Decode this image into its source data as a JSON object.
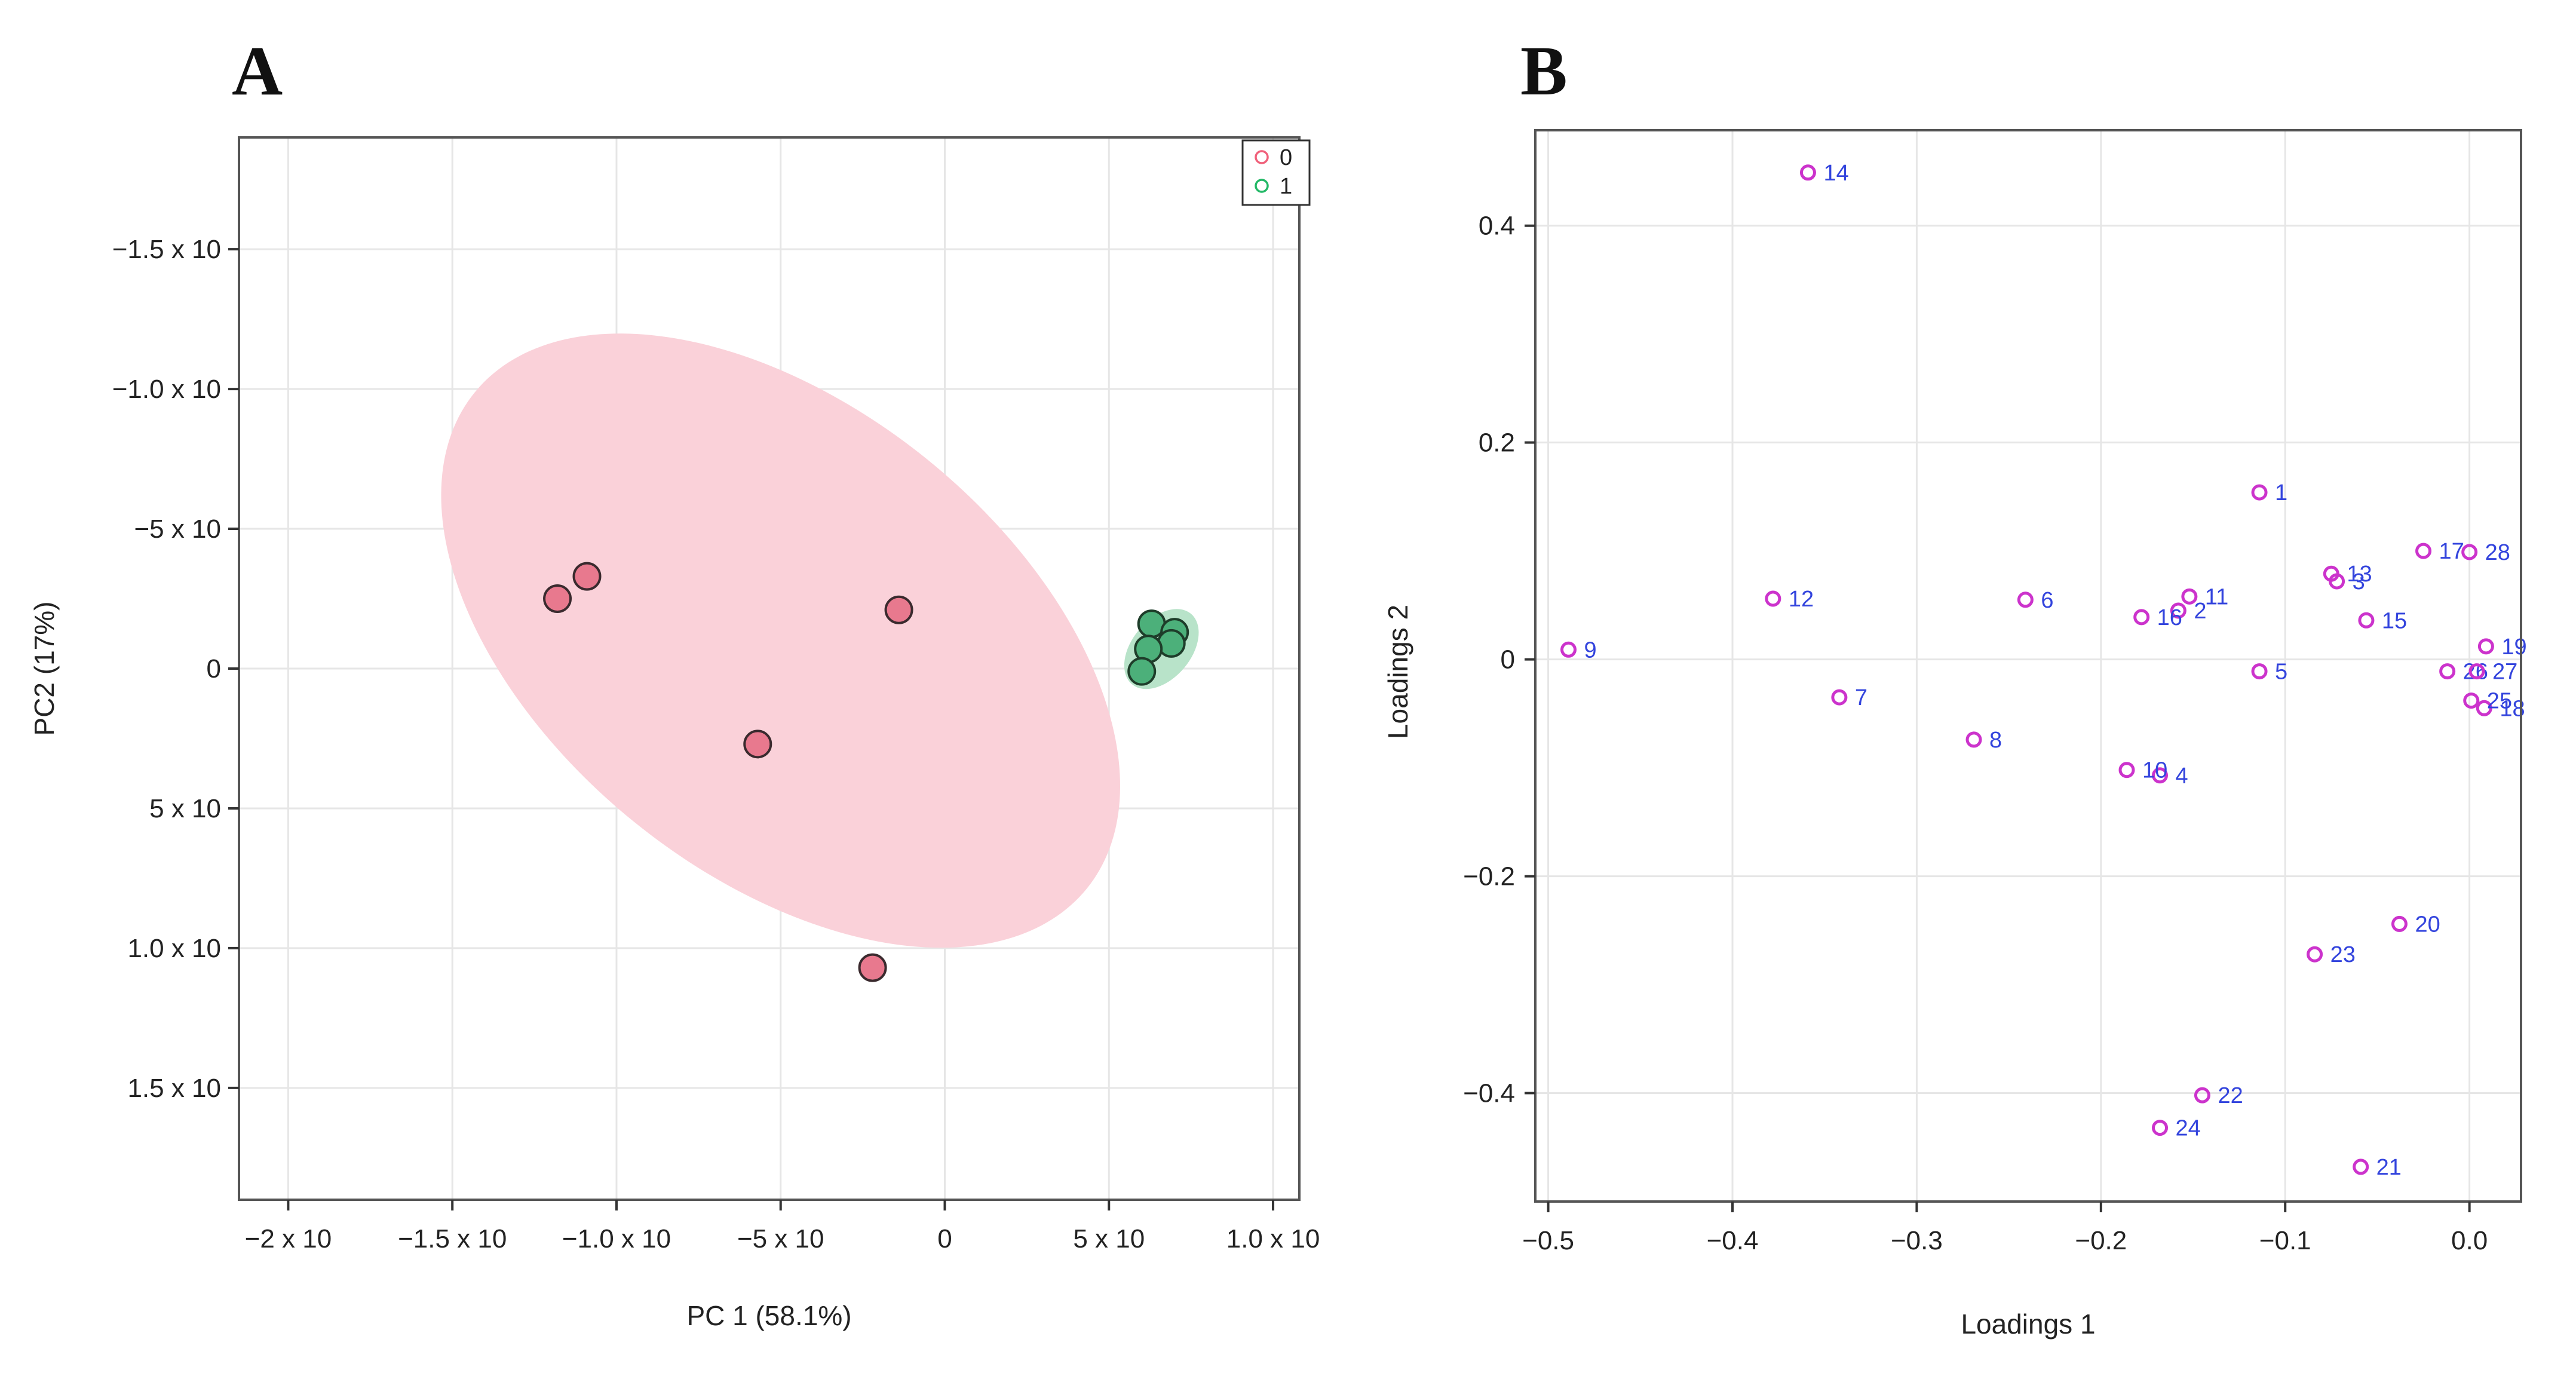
{
  "chart_data": [
    {
      "panel": "A",
      "type": "scatter",
      "xlabel": "PC 1 (58.1%)",
      "ylabel": "PC2 (17%)",
      "xlim": [
        -2.15,
        1.08
      ],
      "ylim": [
        -1.9,
        1.9
      ],
      "y_inverted": true,
      "grid": true,
      "x_ticks": [
        {
          "value": -2.0,
          "label": "−2 x 10"
        },
        {
          "value": -1.5,
          "label": "−1.5 x 10"
        },
        {
          "value": -1.0,
          "label": "−1.0 x 10"
        },
        {
          "value": -0.5,
          "label": "−5 x 10"
        },
        {
          "value": 0.0,
          "label": "0"
        },
        {
          "value": 0.5,
          "label": "5 x 10"
        },
        {
          "value": 1.0,
          "label": "1.0 x 10"
        }
      ],
      "y_ticks": [
        {
          "value": -1.5,
          "label": "−1.5 x 10"
        },
        {
          "value": -1.0,
          "label": "−1.0 x 10"
        },
        {
          "value": -0.5,
          "label": "−5 x 10"
        },
        {
          "value": 0.0,
          "label": "0"
        },
        {
          "value": 0.5,
          "label": "5 x 10"
        },
        {
          "value": 1.0,
          "label": "1.0 x 10"
        },
        {
          "value": 1.5,
          "label": "1.5 x 10"
        }
      ],
      "legend": {
        "position": "top-right",
        "entries": [
          {
            "label": "0",
            "color": "#f0607a"
          },
          {
            "label": "1",
            "color": "#22b866"
          }
        ]
      },
      "series": [
        {
          "name": "0",
          "fill": "#e8798e",
          "stroke": "#3a2a2e",
          "ellipse": {
            "cx": -0.5,
            "cy": -0.1,
            "rx": 1.2,
            "ry": 0.71,
            "angle_deg": 39,
            "color": "#fad1d9"
          },
          "points": [
            {
              "x": -1.18,
              "y": -0.25
            },
            {
              "x": -1.09,
              "y": -0.33
            },
            {
              "x": -0.14,
              "y": -0.21
            },
            {
              "x": -0.57,
              "y": 0.27
            },
            {
              "x": -0.22,
              "y": 1.07
            }
          ]
        },
        {
          "name": "1",
          "fill": "#4cb07a",
          "stroke": "#1e3d2a",
          "ellipse": {
            "cx": 0.66,
            "cy": -0.07,
            "rx": 0.09,
            "ry": 0.14,
            "angle_deg": 40,
            "color": "#b8e3c9"
          },
          "points": [
            {
              "x": 0.63,
              "y": -0.16
            },
            {
              "x": 0.7,
              "y": -0.13
            },
            {
              "x": 0.69,
              "y": -0.09
            },
            {
              "x": 0.62,
              "y": -0.07
            },
            {
              "x": 0.6,
              "y": 0.01
            }
          ]
        }
      ]
    },
    {
      "panel": "B",
      "type": "scatter",
      "xlabel": "Loadings 1",
      "ylabel": "Loadings 2",
      "xlim": [
        -0.507,
        0.028
      ],
      "ylim": [
        -0.5,
        0.488
      ],
      "grid": true,
      "x_ticks": [
        {
          "value": -0.5,
          "label": "−0.5"
        },
        {
          "value": -0.4,
          "label": "−0.4"
        },
        {
          "value": -0.3,
          "label": "−0.3"
        },
        {
          "value": -0.2,
          "label": "−0.2"
        },
        {
          "value": -0.1,
          "label": "−0.1"
        },
        {
          "value": 0.0,
          "label": "0.0"
        }
      ],
      "y_ticks": [
        {
          "value": -0.4,
          "label": "−0.4"
        },
        {
          "value": -0.2,
          "label": "−0.2"
        },
        {
          "value": 0.0,
          "label": "0"
        },
        {
          "value": 0.2,
          "label": "0.2"
        },
        {
          "value": 0.4,
          "label": "0.4"
        }
      ],
      "point_color": "#cc33cc",
      "label_color": "#3344dd",
      "points": [
        {
          "label": "1",
          "x": -0.114,
          "y": 0.154
        },
        {
          "label": "2",
          "x": -0.158,
          "y": 0.045
        },
        {
          "label": "3",
          "x": -0.072,
          "y": 0.072
        },
        {
          "label": "4",
          "x": -0.168,
          "y": -0.107
        },
        {
          "label": "5",
          "x": -0.114,
          "y": -0.011
        },
        {
          "label": "6",
          "x": -0.241,
          "y": 0.055
        },
        {
          "label": "7",
          "x": -0.342,
          "y": -0.035
        },
        {
          "label": "8",
          "x": -0.269,
          "y": -0.074
        },
        {
          "label": "9",
          "x": -0.489,
          "y": 0.009
        },
        {
          "label": "10",
          "x": -0.186,
          "y": -0.102
        },
        {
          "label": "11",
          "x": -0.152,
          "y": 0.058
        },
        {
          "label": "12",
          "x": -0.378,
          "y": 0.056
        },
        {
          "label": "13",
          "x": -0.075,
          "y": 0.079
        },
        {
          "label": "14",
          "x": -0.359,
          "y": 0.449
        },
        {
          "label": "15",
          "x": -0.056,
          "y": 0.036
        },
        {
          "label": "16",
          "x": -0.178,
          "y": 0.039
        },
        {
          "label": "17",
          "x": -0.025,
          "y": 0.1
        },
        {
          "label": "18",
          "x": 0.008,
          "y": -0.045
        },
        {
          "label": "19",
          "x": 0.009,
          "y": 0.012
        },
        {
          "label": "20",
          "x": -0.038,
          "y": -0.244
        },
        {
          "label": "21",
          "x": -0.059,
          "y": -0.468
        },
        {
          "label": "22",
          "x": -0.145,
          "y": -0.402
        },
        {
          "label": "23",
          "x": -0.084,
          "y": -0.272
        },
        {
          "label": "24",
          "x": -0.168,
          "y": -0.432
        },
        {
          "label": "25",
          "x": 0.001,
          "y": -0.038
        },
        {
          "label": "26",
          "x": -0.012,
          "y": -0.011
        },
        {
          "label": "27",
          "x": 0.004,
          "y": -0.011
        },
        {
          "label": "28",
          "x": 0.0,
          "y": 0.099
        }
      ]
    }
  ],
  "panels": {
    "a_letter": "A",
    "b_letter": "B"
  }
}
